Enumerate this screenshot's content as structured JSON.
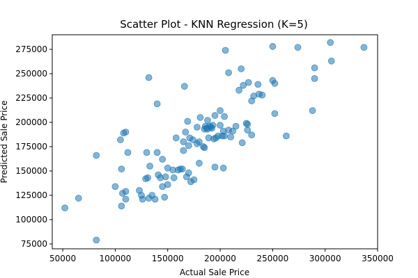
{
  "chart_data": {
    "type": "scatter",
    "title": "Scatter Plot - KNN Regression (K=5)",
    "xlabel": "Actual Sale Price",
    "ylabel": "Predicted Sale Price",
    "xlim": [
      40000,
      350000
    ],
    "ylim": [
      70000,
      290000
    ],
    "xticks": [
      50000,
      100000,
      150000,
      200000,
      250000,
      300000,
      350000
    ],
    "yticks": [
      75000,
      100000,
      125000,
      150000,
      175000,
      200000,
      225000,
      250000,
      275000
    ],
    "grid": false,
    "marker_color": "#1f77b4",
    "marker_alpha": 0.55,
    "points": [
      [
        52000,
        112000
      ],
      [
        65000,
        122000
      ],
      [
        82000,
        79000
      ],
      [
        82000,
        166000
      ],
      [
        100000,
        134000
      ],
      [
        105000,
        182000
      ],
      [
        106000,
        152000
      ],
      [
        106000,
        114000
      ],
      [
        107000,
        127000
      ],
      [
        108000,
        189000
      ],
      [
        110000,
        190000
      ],
      [
        110000,
        129000
      ],
      [
        110000,
        121000
      ],
      [
        112000,
        169000
      ],
      [
        123000,
        130000
      ],
      [
        125000,
        125000
      ],
      [
        126000,
        121000
      ],
      [
        129000,
        142000
      ],
      [
        130000,
        169000
      ],
      [
        131000,
        143000
      ],
      [
        132000,
        246000
      ],
      [
        132000,
        122000
      ],
      [
        133000,
        155000
      ],
      [
        135000,
        125000
      ],
      [
        138000,
        121000
      ],
      [
        140000,
        169000
      ],
      [
        140000,
        219000
      ],
      [
        141000,
        146000
      ],
      [
        143000,
        143000
      ],
      [
        145000,
        162000
      ],
      [
        145000,
        134000
      ],
      [
        147000,
        123000
      ],
      [
        148000,
        144000
      ],
      [
        150000,
        136000
      ],
      [
        150000,
        153000
      ],
      [
        155000,
        151000
      ],
      [
        156000,
        143000
      ],
      [
        158000,
        184000
      ],
      [
        160000,
        151000
      ],
      [
        162000,
        152000
      ],
      [
        164000,
        152000
      ],
      [
        165000,
        171000
      ],
      [
        165000,
        180000
      ],
      [
        166000,
        237000
      ],
      [
        167000,
        190000
      ],
      [
        168000,
        144000
      ],
      [
        169000,
        201000
      ],
      [
        170000,
        148000
      ],
      [
        170000,
        176000
      ],
      [
        171000,
        184000
      ],
      [
        172000,
        139000
      ],
      [
        174000,
        182000
      ],
      [
        175000,
        141000
      ],
      [
        178000,
        195000
      ],
      [
        178000,
        178000
      ],
      [
        180000,
        180000
      ],
      [
        180000,
        158000
      ],
      [
        181000,
        205000
      ],
      [
        184000,
        175000
      ],
      [
        185000,
        174000
      ],
      [
        185000,
        193000
      ],
      [
        186000,
        196000
      ],
      [
        187000,
        194000
      ],
      [
        188000,
        193000
      ],
      [
        188000,
        202000
      ],
      [
        189000,
        184000
      ],
      [
        190000,
        196000
      ],
      [
        191000,
        195000
      ],
      [
        192000,
        194000
      ],
      [
        193000,
        197000
      ],
      [
        194000,
        183000
      ],
      [
        195000,
        154000
      ],
      [
        195000,
        207000
      ],
      [
        196000,
        184000
      ],
      [
        198000,
        186000
      ],
      [
        200000,
        212000
      ],
      [
        200000,
        197000
      ],
      [
        202000,
        186000
      ],
      [
        203000,
        153000
      ],
      [
        203000,
        191000
      ],
      [
        204000,
        206000
      ],
      [
        204000,
        186000
      ],
      [
        205000,
        274000
      ],
      [
        208000,
        192000
      ],
      [
        208000,
        251000
      ],
      [
        210000,
        185000
      ],
      [
        212000,
        191000
      ],
      [
        215000,
        196000
      ],
      [
        218000,
        233000
      ],
      [
        220000,
        255000
      ],
      [
        221000,
        179000
      ],
      [
        222000,
        238000
      ],
      [
        225000,
        199000
      ],
      [
        226000,
        198000
      ],
      [
        226000,
        192000
      ],
      [
        227000,
        241000
      ],
      [
        230000,
        187000
      ],
      [
        230000,
        222000
      ],
      [
        232000,
        227000
      ],
      [
        236000,
        239000
      ],
      [
        237000,
        229000
      ],
      [
        240000,
        228000
      ],
      [
        250000,
        278000
      ],
      [
        250000,
        243000
      ],
      [
        252000,
        240000
      ],
      [
        252000,
        209000
      ],
      [
        263000,
        186000
      ],
      [
        274000,
        277000
      ],
      [
        288000,
        212000
      ],
      [
        290000,
        256000
      ],
      [
        290000,
        245000
      ],
      [
        305000,
        282000
      ],
      [
        306000,
        263000
      ],
      [
        337000,
        277000
      ]
    ]
  }
}
